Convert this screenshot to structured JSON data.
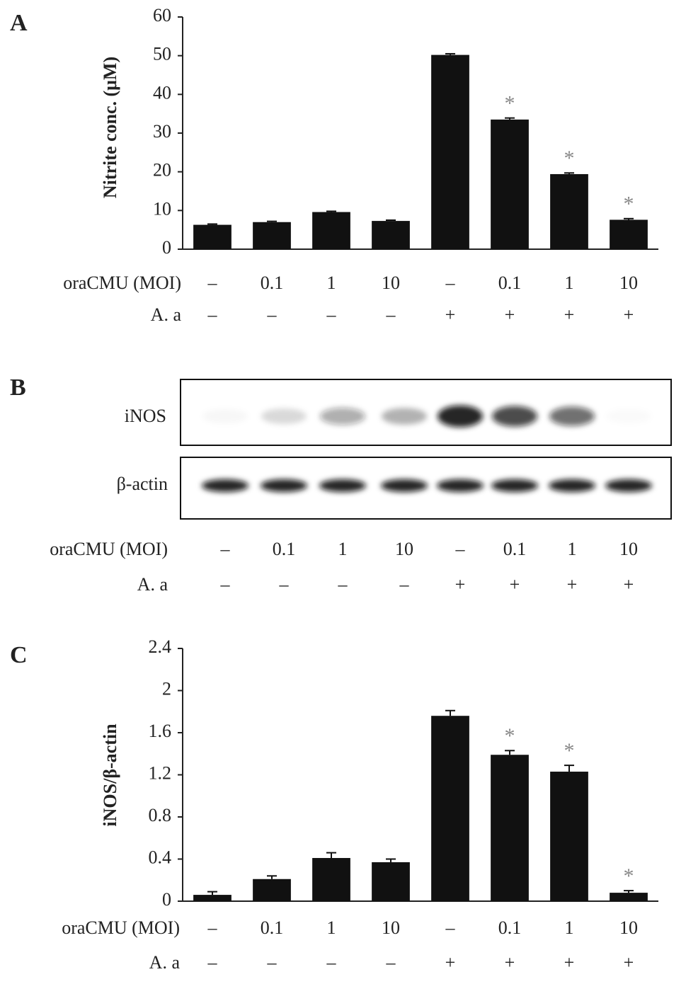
{
  "chart_data": [
    {
      "type": "bar",
      "panel_label": "A",
      "y_label": "Nitrite conc. (μM)",
      "category_titles": [
        "oraCMU (MOI)",
        "A. a"
      ],
      "categories": [
        "–",
        "0.1",
        "1",
        "10",
        "–",
        "0.1",
        "1",
        "10"
      ],
      "categories_2": [
        "–",
        "–",
        "–",
        "–",
        "+",
        "+",
        "+",
        "+"
      ],
      "values": [
        6.3,
        7.0,
        9.6,
        7.3,
        50.2,
        33.5,
        19.4,
        7.6
      ],
      "errors": [
        0.2,
        0.2,
        0.2,
        0.2,
        0.3,
        0.4,
        0.3,
        0.3
      ],
      "color": "#111111",
      "ylim": [
        0,
        60
      ],
      "yticks": [
        0,
        10,
        20,
        30,
        40,
        50,
        60
      ],
      "annotations": [
        {
          "index": 5,
          "text": "*"
        },
        {
          "index": 6,
          "text": "*"
        },
        {
          "index": 7,
          "text": "*"
        }
      ]
    },
    {
      "type": "bar",
      "panel_label": "C",
      "y_label": "iNOS/β-actin",
      "category_titles": [
        "oraCMU (MOI)",
        "A. a"
      ],
      "categories": [
        "–",
        "0.1",
        "1",
        "10",
        "–",
        "0.1",
        "1",
        "10"
      ],
      "categories_2": [
        "–",
        "–",
        "–",
        "–",
        "+",
        "+",
        "+",
        "+"
      ],
      "values": [
        0.06,
        0.21,
        0.41,
        0.37,
        1.76,
        1.39,
        1.23,
        0.08
      ],
      "errors": [
        0.03,
        0.03,
        0.05,
        0.03,
        0.05,
        0.04,
        0.06,
        0.02
      ],
      "color": "#111111",
      "ylim": [
        0,
        2.4
      ],
      "yticks": [
        0,
        0.4,
        0.8,
        1.2,
        1.6,
        2,
        2.4
      ],
      "annotations": [
        {
          "index": 5,
          "text": "*"
        },
        {
          "index": 6,
          "text": "*"
        },
        {
          "index": 7,
          "text": "*"
        }
      ]
    }
  ],
  "blot": {
    "panel_label": "B",
    "rows": [
      "iNOS",
      "β-actin"
    ],
    "category_titles": [
      "oraCMU (MOI)",
      "A. a"
    ],
    "categories": [
      "–",
      "0.1",
      "1",
      "10",
      "–",
      "0.1",
      "1",
      "10"
    ],
    "categories_2": [
      "–",
      "–",
      "–",
      "–",
      "+",
      "+",
      "+",
      "+"
    ]
  }
}
